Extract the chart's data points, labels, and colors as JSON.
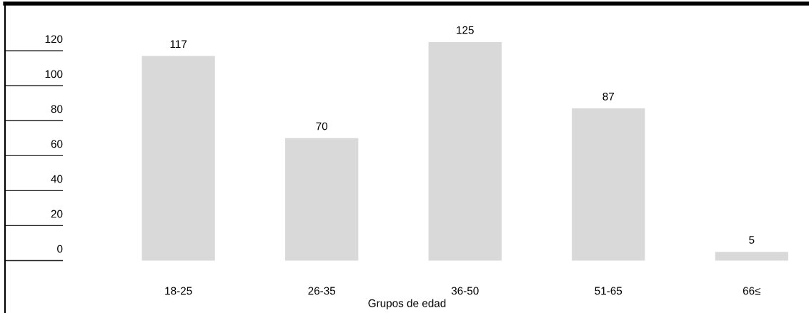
{
  "chart_data": {
    "type": "bar",
    "xlabel": "Grupos de edad",
    "categories": [
      "18-25",
      "26-35",
      "36-50",
      "51-65",
      "66≤"
    ],
    "values": [
      117,
      70,
      125,
      87,
      5
    ],
    "color": "#d9d9d9",
    "ylim": [
      -30,
      147
    ],
    "yticks": [
      0,
      20,
      40,
      60,
      80,
      100,
      120
    ],
    "grid": "y",
    "data_labels": true
  }
}
